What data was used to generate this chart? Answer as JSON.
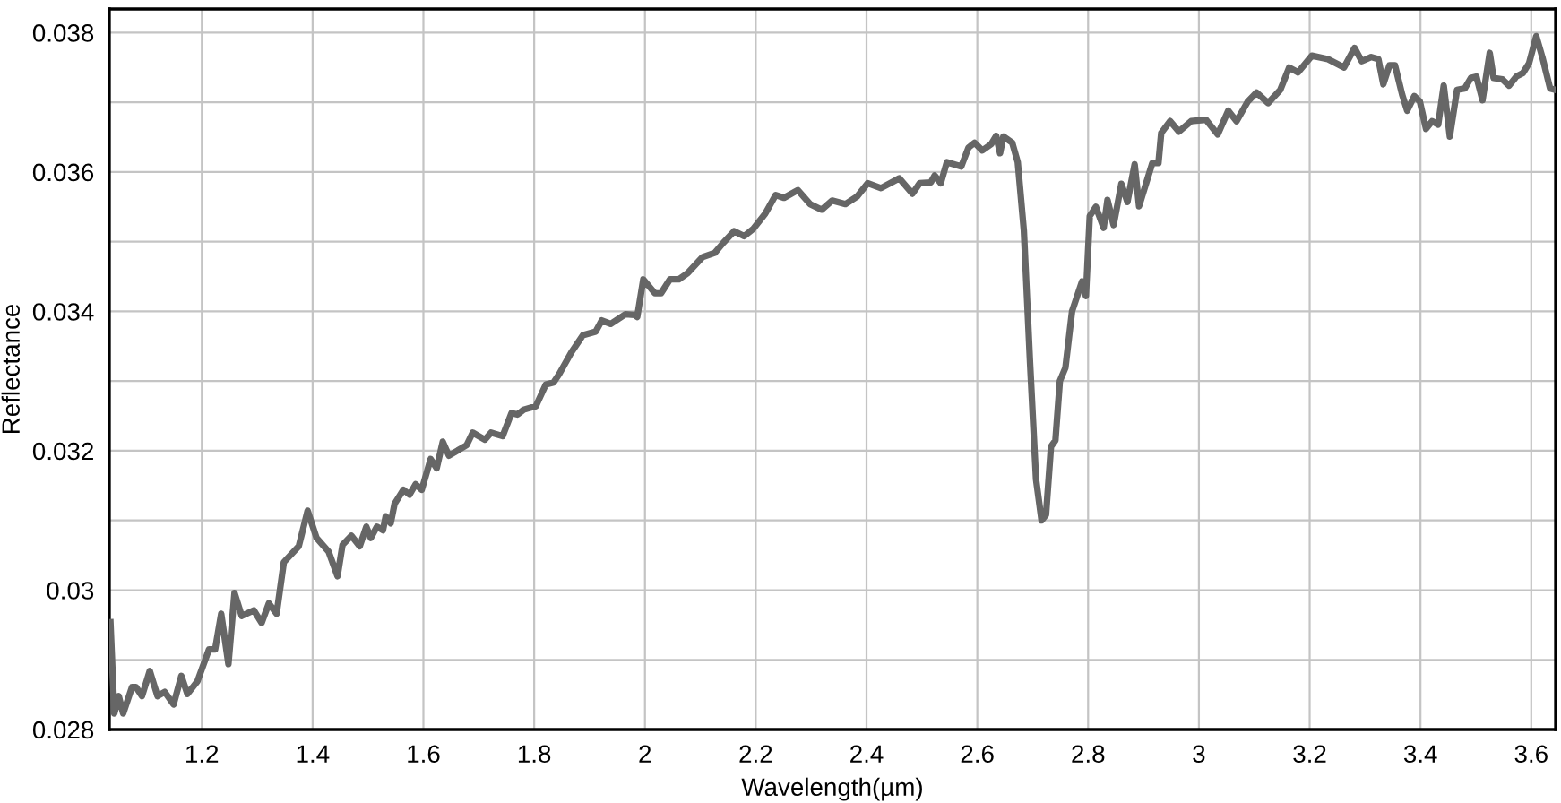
{
  "chart_data": {
    "type": "line",
    "xlabel": "Wavelength(µm)",
    "ylabel": "Reflectance",
    "xlim": [
      1.033,
      3.644
    ],
    "ylim": [
      0.028,
      0.03834
    ],
    "xticks": [
      1.2,
      1.4,
      1.6,
      1.8,
      2,
      2.2,
      2.4,
      2.6,
      2.8,
      3,
      3.2,
      3.4,
      3.6
    ],
    "yticks": [
      0.028,
      {
        "value": 0.029,
        "label": null
      },
      0.03,
      {
        "value": 0.031,
        "label": null
      },
      0.032,
      {
        "value": 0.033,
        "label": null
      },
      0.034,
      {
        "value": 0.035,
        "label": null
      },
      0.036,
      {
        "value": 0.037,
        "label": null
      },
      0.038
    ],
    "grid": true,
    "marker": "none",
    "line_style": "solid",
    "series": [
      {
        "color": "#666666",
        "x": [
          1.035,
          1.042,
          1.05,
          1.058,
          1.074,
          1.081,
          1.092,
          1.106,
          1.12,
          1.133,
          1.149,
          1.163,
          1.174,
          1.192,
          1.213,
          1.224,
          1.235,
          1.248,
          1.259,
          1.272,
          1.294,
          1.308,
          1.321,
          1.335,
          1.348,
          1.375,
          1.391,
          1.407,
          1.429,
          1.445,
          1.454,
          1.47,
          1.485,
          1.497,
          1.505,
          1.516,
          1.527,
          1.532,
          1.541,
          1.548,
          1.564,
          1.575,
          1.586,
          1.597,
          1.613,
          1.624,
          1.635,
          1.646,
          1.678,
          1.689,
          1.711,
          1.722,
          1.743,
          1.759,
          1.77,
          1.781,
          1.803,
          1.821,
          1.835,
          1.845,
          1.867,
          1.888,
          1.911,
          1.922,
          1.938,
          1.965,
          1.981,
          1.986,
          1.997,
          2.018,
          2.029,
          2.045,
          2.061,
          2.077,
          2.104,
          2.126,
          2.142,
          2.161,
          2.179,
          2.195,
          2.217,
          2.236,
          2.251,
          2.276,
          2.298,
          2.319,
          2.338,
          2.362,
          2.383,
          2.402,
          2.426,
          2.459,
          2.483,
          2.496,
          2.516,
          2.523,
          2.534,
          2.545,
          2.571,
          2.584,
          2.595,
          2.609,
          2.625,
          2.634,
          2.641,
          2.647,
          2.663,
          2.673,
          2.684,
          2.695,
          2.706,
          2.716,
          2.724,
          2.733,
          2.741,
          2.749,
          2.759,
          2.771,
          2.789,
          2.796,
          2.803,
          2.814,
          2.828,
          2.835,
          2.846,
          2.86,
          2.871,
          2.884,
          2.892,
          2.916,
          2.927,
          2.932,
          2.948,
          2.964,
          2.986,
          3.013,
          3.034,
          3.053,
          3.068,
          3.088,
          3.104,
          3.125,
          3.147,
          3.163,
          3.179,
          3.204,
          3.233,
          3.262,
          3.281,
          3.294,
          3.311,
          3.324,
          3.333,
          3.344,
          3.354,
          3.367,
          3.376,
          3.389,
          3.399,
          3.41,
          3.421,
          3.432,
          3.442,
          3.453,
          3.466,
          3.48,
          3.491,
          3.501,
          3.512,
          3.525,
          3.532,
          3.548,
          3.56,
          3.573,
          3.585,
          3.596,
          3.609,
          3.62,
          3.634,
          3.644
        ],
        "values": [
          0.02954,
          0.02823,
          0.02848,
          0.02823,
          0.02861,
          0.02861,
          0.02848,
          0.02884,
          0.02848,
          0.02854,
          0.02836,
          0.02877,
          0.02851,
          0.02869,
          0.02915,
          0.02915,
          0.02966,
          0.02894,
          0.02996,
          0.02963,
          0.02971,
          0.02953,
          0.02981,
          0.02966,
          0.0304,
          0.03063,
          0.03114,
          0.03075,
          0.03055,
          0.0302,
          0.03065,
          0.03078,
          0.03063,
          0.03091,
          0.03075,
          0.03091,
          0.03086,
          0.03106,
          0.03096,
          0.03124,
          0.03144,
          0.03137,
          0.03152,
          0.03144,
          0.03188,
          0.03175,
          0.03213,
          0.03193,
          0.03208,
          0.03226,
          0.03216,
          0.03226,
          0.03221,
          0.03254,
          0.03252,
          0.03259,
          0.03264,
          0.03295,
          0.03298,
          0.0331,
          0.03341,
          0.03366,
          0.03371,
          0.03387,
          0.03382,
          0.03396,
          0.03395,
          0.03392,
          0.03446,
          0.03426,
          0.03426,
          0.03446,
          0.03446,
          0.03455,
          0.03478,
          0.03484,
          0.03499,
          0.03515,
          0.03508,
          0.03518,
          0.0354,
          0.03567,
          0.03563,
          0.03574,
          0.03554,
          0.03546,
          0.03559,
          0.03554,
          0.03565,
          0.03584,
          0.03577,
          0.03591,
          0.03569,
          0.03584,
          0.03585,
          0.03595,
          0.03584,
          0.03614,
          0.03608,
          0.03635,
          0.03642,
          0.03631,
          0.0364,
          0.03652,
          0.03627,
          0.03651,
          0.03642,
          0.03614,
          0.03516,
          0.03329,
          0.03159,
          0.031,
          0.03108,
          0.03206,
          0.03215,
          0.033,
          0.03319,
          0.034,
          0.03443,
          0.03422,
          0.03537,
          0.0355,
          0.0352,
          0.0356,
          0.03524,
          0.03583,
          0.03557,
          0.03611,
          0.03551,
          0.03613,
          0.03613,
          0.03656,
          0.03673,
          0.03658,
          0.03673,
          0.03675,
          0.03654,
          0.03688,
          0.03673,
          0.03701,
          0.03714,
          0.03699,
          0.03718,
          0.0375,
          0.03743,
          0.03767,
          0.03762,
          0.0375,
          0.03778,
          0.03759,
          0.03765,
          0.03762,
          0.03726,
          0.03753,
          0.03753,
          0.03711,
          0.03688,
          0.03709,
          0.03701,
          0.03662,
          0.03673,
          0.03668,
          0.03724,
          0.03651,
          0.03718,
          0.0372,
          0.03735,
          0.03737,
          0.03703,
          0.03771,
          0.03735,
          0.03733,
          0.03724,
          0.03737,
          0.03742,
          0.03756,
          0.03795,
          0.03765,
          0.0372,
          0.03718
        ]
      }
    ]
  }
}
